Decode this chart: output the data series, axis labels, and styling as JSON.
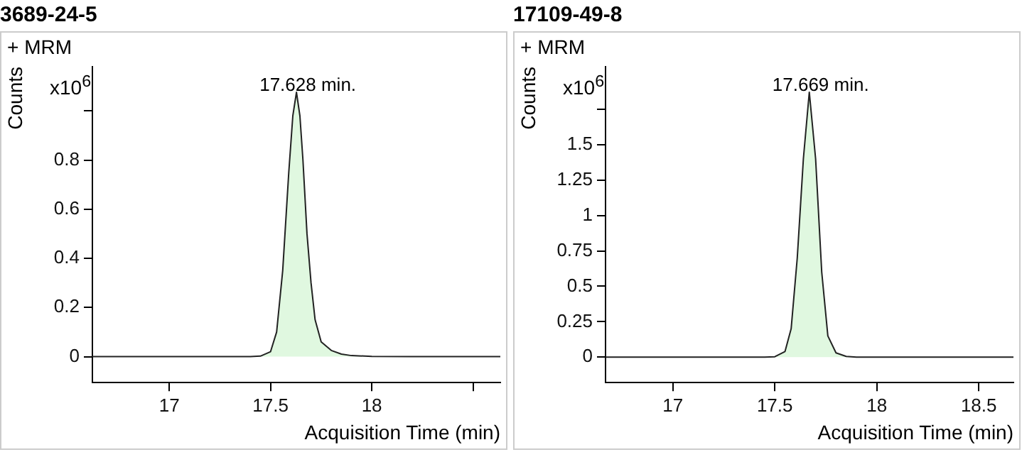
{
  "chart_data": [
    {
      "type": "area",
      "title": "3689-24-5",
      "ylabel": "Counts",
      "xlabel": "Acquisition Time (min)",
      "annotations": [
        "+ MRM",
        "x10$^{6}$",
        {
          "text": "17.628 min.",
          "x": 17.628,
          "y": 1.076
        }
      ],
      "xlim": [
        16.62,
        18.635
      ],
      "xticks": [
        17,
        17.5,
        18,
        {
          "value": 18.5,
          "label": null
        }
      ],
      "ylim": [
        -0.106,
        1.18
      ],
      "yticks": [
        0,
        0.2,
        0.4,
        0.6,
        0.8,
        {
          "value": 1,
          "label": null
        }
      ],
      "grid": false,
      "legend": false,
      "marker": "none",
      "series": [
        {
          "color": "#e0f8e0",
          "x": [
            16.62,
            17.4,
            17.45,
            17.5,
            17.53,
            17.56,
            17.59,
            17.61,
            17.628,
            17.645,
            17.66,
            17.68,
            17.7,
            17.72,
            17.75,
            17.8,
            17.85,
            17.9,
            18.0,
            18.2,
            18.635
          ],
          "values": [
            0,
            0,
            0.002,
            0.02,
            0.1,
            0.35,
            0.75,
            0.98,
            1.076,
            0.98,
            0.8,
            0.5,
            0.3,
            0.15,
            0.06,
            0.025,
            0.01,
            0.004,
            0.001,
            0,
            0
          ]
        }
      ]
    },
    {
      "type": "area",
      "title": "17109-49-8",
      "ylabel": "Counts",
      "xlabel": "Acquisition Time (min)",
      "annotations": [
        "+ MRM",
        "x10$^{6}$",
        {
          "text": "17.669 min.",
          "x": 17.669,
          "y": 1.87
        }
      ],
      "xlim": [
        16.67,
        18.67
      ],
      "xticks": [
        17,
        17.5,
        18,
        18.5
      ],
      "ylim": [
        -0.18,
        2.05
      ],
      "yticks": [
        0,
        0.25,
        0.5,
        0.75,
        1,
        1.25,
        1.5,
        {
          "value": 1.75,
          "label": null
        }
      ],
      "grid": false,
      "legend": false,
      "marker": "none",
      "series": [
        {
          "color": "#e0f8e0",
          "x": [
            16.67,
            17.45,
            17.5,
            17.55,
            17.58,
            17.61,
            17.64,
            17.669,
            17.7,
            17.73,
            17.76,
            17.8,
            17.85,
            17.9,
            18.67
          ],
          "values": [
            0,
            0,
            0.003,
            0.04,
            0.2,
            0.7,
            1.4,
            1.87,
            1.4,
            0.6,
            0.15,
            0.03,
            0.005,
            0,
            0
          ]
        }
      ]
    }
  ]
}
